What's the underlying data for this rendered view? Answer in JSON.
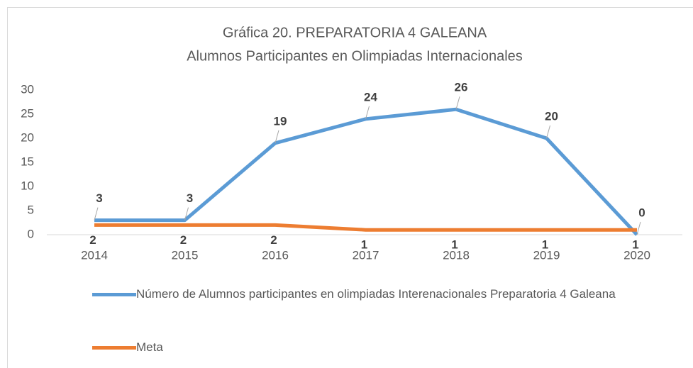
{
  "chart_data": {
    "type": "line",
    "title": "Gráfica 20. PREPARATORIA 4 GALEANA",
    "subtitle": "Alumnos Participantes en Olimpiadas Internacionales",
    "categories": [
      "2014",
      "2015",
      "2016",
      "2017",
      "2018",
      "2019",
      "2020"
    ],
    "series": [
      {
        "name": "Número de Alumnos participantes en olimpiadas Interenacionales Preparatoria 4 Galeana",
        "color": "#5b9bd5",
        "values": [
          3,
          3,
          19,
          24,
          26,
          20,
          0
        ]
      },
      {
        "name": "Meta",
        "color": "#ed7d31",
        "values": [
          2,
          2,
          2,
          1,
          1,
          1,
          1
        ]
      }
    ],
    "ylim": [
      0,
      30
    ],
    "yticks": [
      0,
      5,
      10,
      15,
      20,
      25,
      30
    ],
    "grid": false
  }
}
